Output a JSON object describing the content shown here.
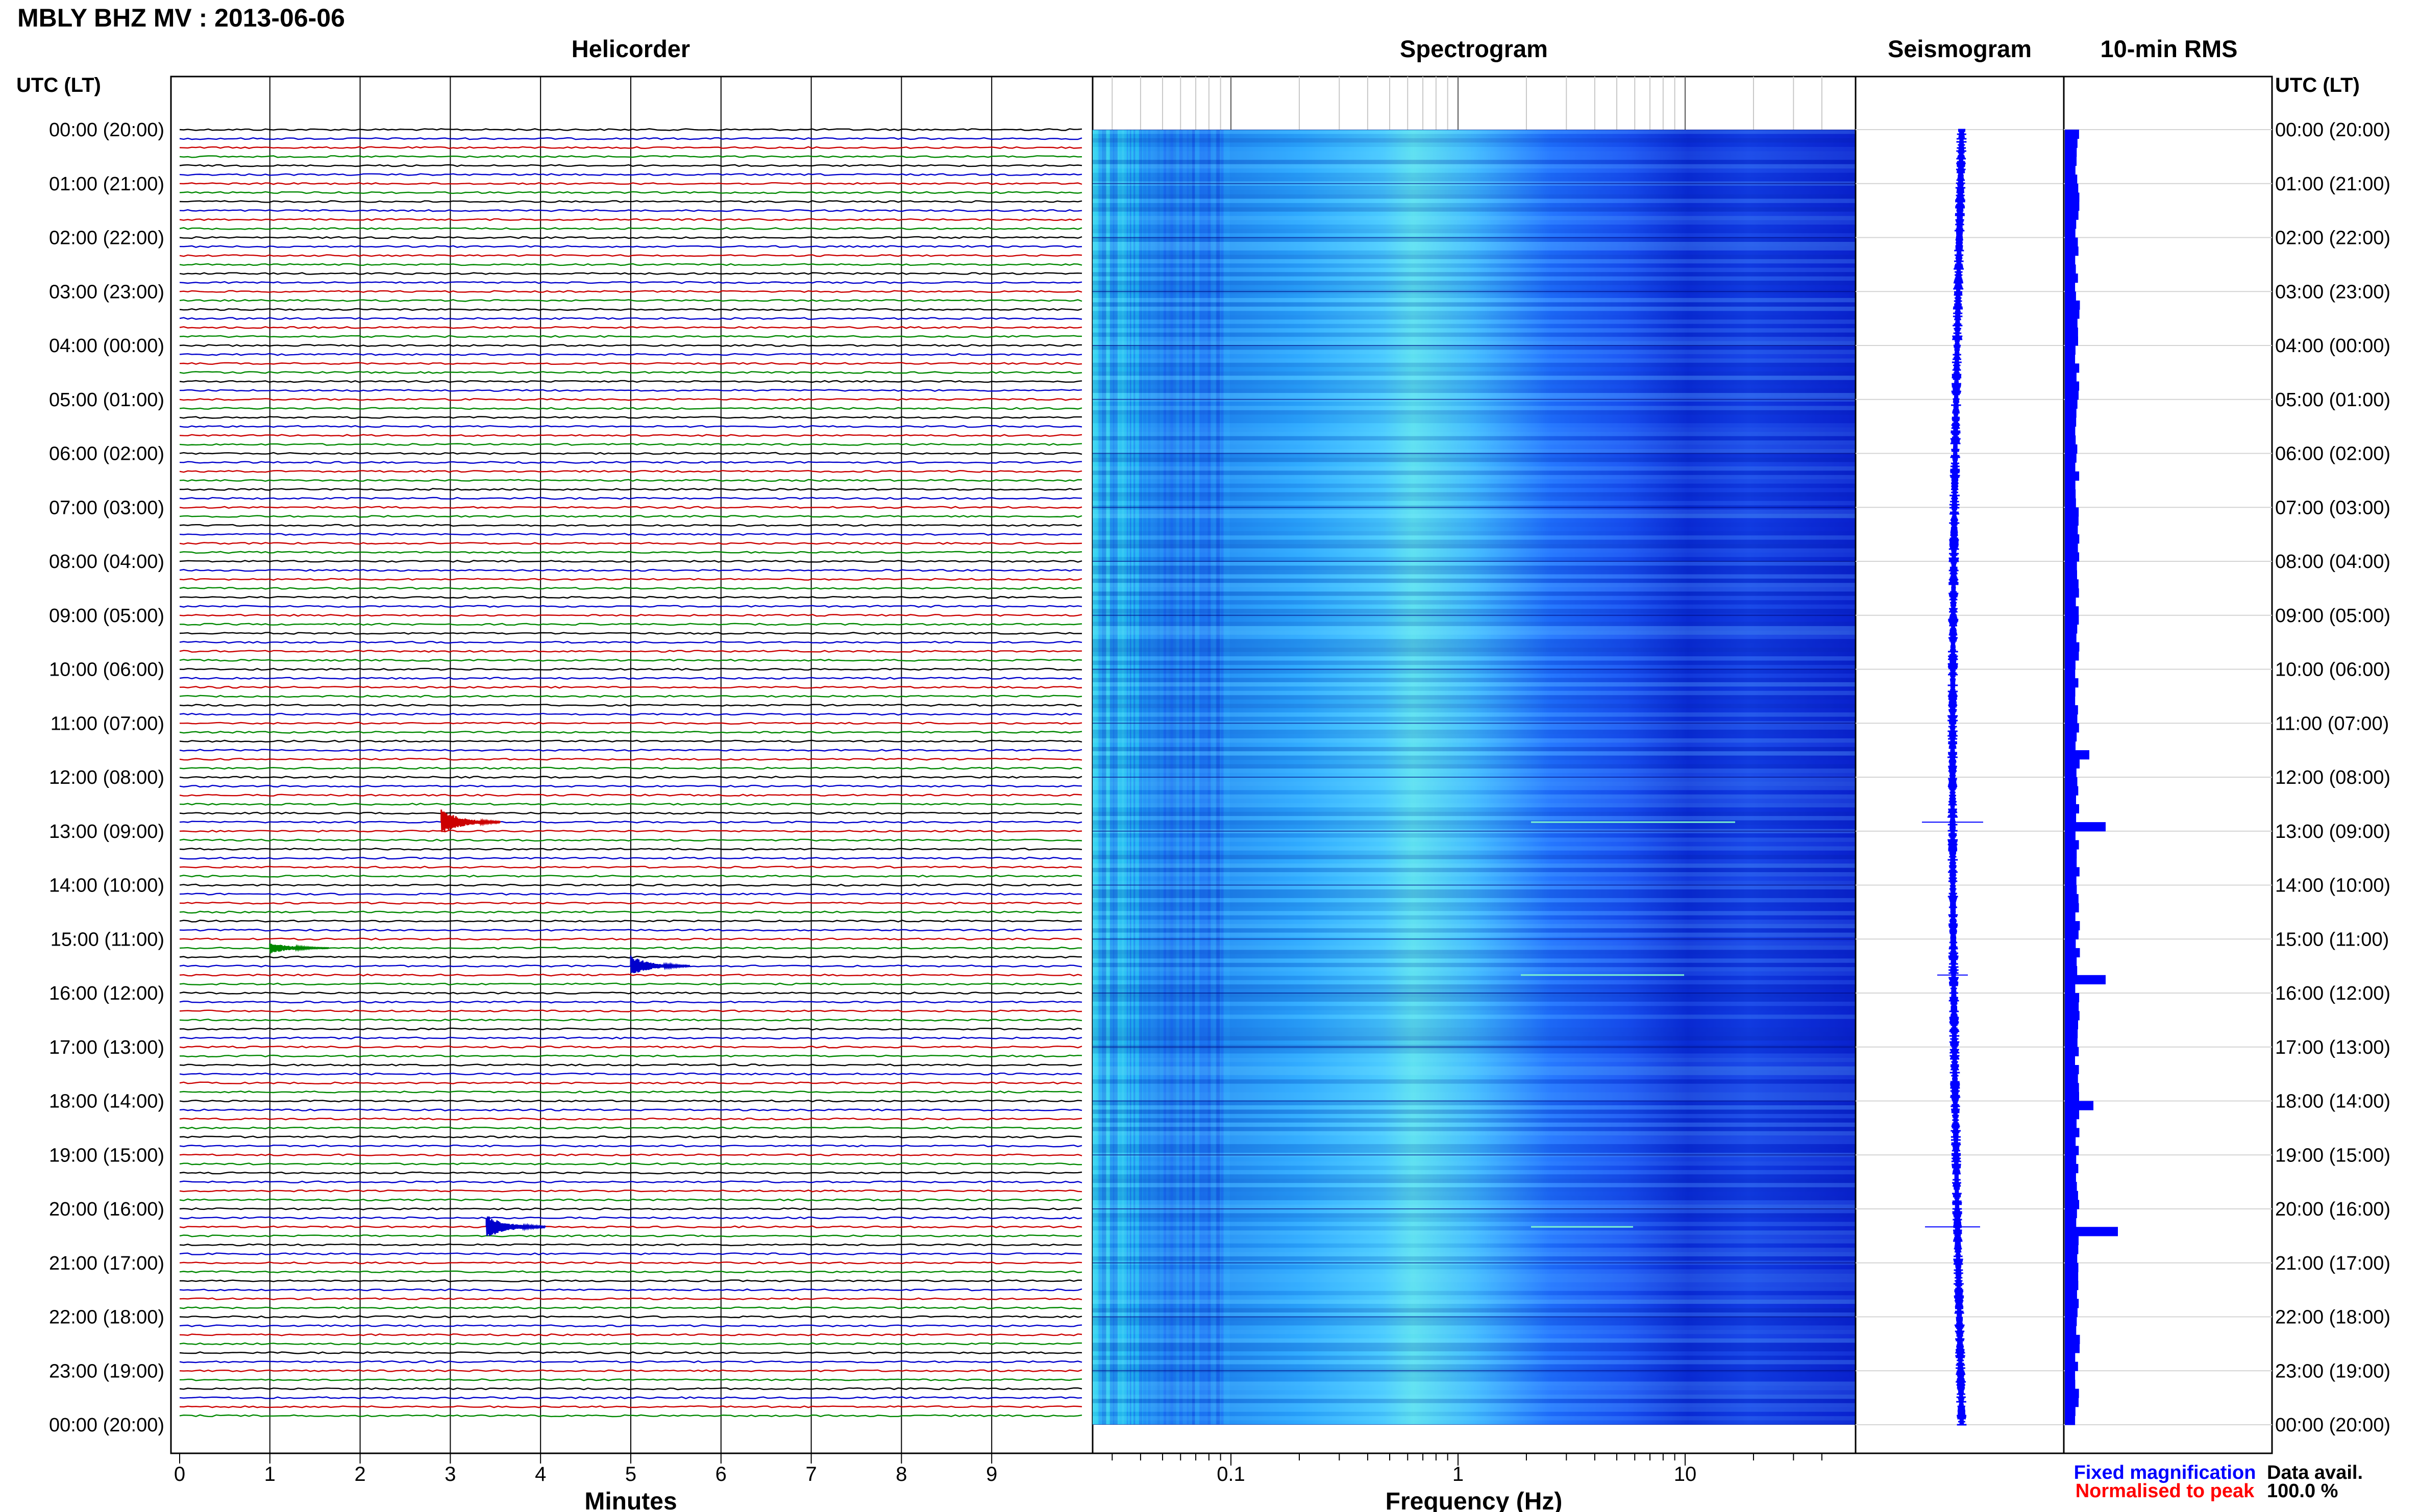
{
  "page": {
    "title": "MBLY BHZ MV : 2013-06-06",
    "time_header_left": "UTC (LT)",
    "time_header_right": "UTC (LT)"
  },
  "time_labels": [
    "00:00 (20:00)",
    "01:00 (21:00)",
    "02:00 (22:00)",
    "03:00 (23:00)",
    "04:00 (00:00)",
    "05:00 (01:00)",
    "06:00 (02:00)",
    "07:00 (03:00)",
    "08:00 (04:00)",
    "09:00 (05:00)",
    "10:00 (06:00)",
    "11:00 (07:00)",
    "12:00 (08:00)",
    "13:00 (09:00)",
    "14:00 (10:00)",
    "15:00 (11:00)",
    "16:00 (12:00)",
    "17:00 (13:00)",
    "18:00 (14:00)",
    "19:00 (15:00)",
    "20:00 (16:00)",
    "21:00 (17:00)",
    "22:00 (18:00)",
    "23:00 (19:00)",
    "00:00 (20:00)"
  ],
  "panels": {
    "helicorder": {
      "title": "Helicorder",
      "xlabel": "Minutes",
      "xticks": [
        "0",
        "1",
        "2",
        "3",
        "4",
        "5",
        "6",
        "7",
        "8",
        "9"
      ],
      "trace_colors": [
        "#000000",
        "#0000cc",
        "#cc0000",
        "#008800"
      ]
    },
    "spectrogram": {
      "title": "Spectrogram",
      "xlabel": "Frequency (Hz)",
      "xticks": [
        "0.1",
        "1",
        "10"
      ],
      "scale": "log"
    },
    "seismogram": {
      "title": "Seismogram"
    },
    "rms": {
      "title": "10-min RMS"
    }
  },
  "legend": {
    "fixed": "Fixed magnification",
    "fixed_color": "#0000ff",
    "normalised": "Normalised to peak",
    "normalised_color": "#ff0000"
  },
  "data_avail": {
    "label": "Data avail.",
    "value": "100.0 %"
  },
  "chart_data": [
    {
      "type": "line",
      "title": "Helicorder",
      "xlabel": "Minutes",
      "ylabel": "UTC (LT)",
      "xlim": [
        0,
        10
      ],
      "rows_per_hour": 6,
      "row_count": 144,
      "events": [
        {
          "time": "12:50",
          "minute": 2.9,
          "amplitude": 1.0,
          "color": "#cc0000"
        },
        {
          "time": "15:10",
          "minute": 1.0,
          "amplitude": 0.45,
          "color": "#008800"
        },
        {
          "time": "15:30",
          "minute": 5.0,
          "amplitude": 0.8,
          "color": "#0000cc"
        },
        {
          "time": "20:20",
          "minute": 3.4,
          "amplitude": 0.95,
          "color": "#0000cc"
        }
      ]
    },
    {
      "type": "heatmap",
      "title": "Spectrogram",
      "xlabel": "Frequency (Hz)",
      "xscale": "log",
      "xlim": [
        0.02,
        50
      ],
      "colormap": [
        "#0015e0",
        "#1a6cff",
        "#2ec4ff",
        "#7cf0d0"
      ]
    },
    {
      "type": "line",
      "title": "Seismogram",
      "events": [
        {
          "time": "12:50",
          "amplitude": 1.0
        },
        {
          "time": "15:40",
          "amplitude": 0.5
        },
        {
          "time": "20:20",
          "amplitude": 0.9
        }
      ]
    },
    {
      "type": "bar",
      "title": "10-min RMS",
      "orientation": "horizontal",
      "base_level": 0.25,
      "peaks": [
        {
          "time": "12:50",
          "value": 1.0
        },
        {
          "time": "15:40",
          "value": 1.0
        },
        {
          "time": "20:20",
          "value": 1.3
        },
        {
          "time": "18:00",
          "value": 0.7
        },
        {
          "time": "11:30",
          "value": 0.6
        }
      ]
    }
  ]
}
